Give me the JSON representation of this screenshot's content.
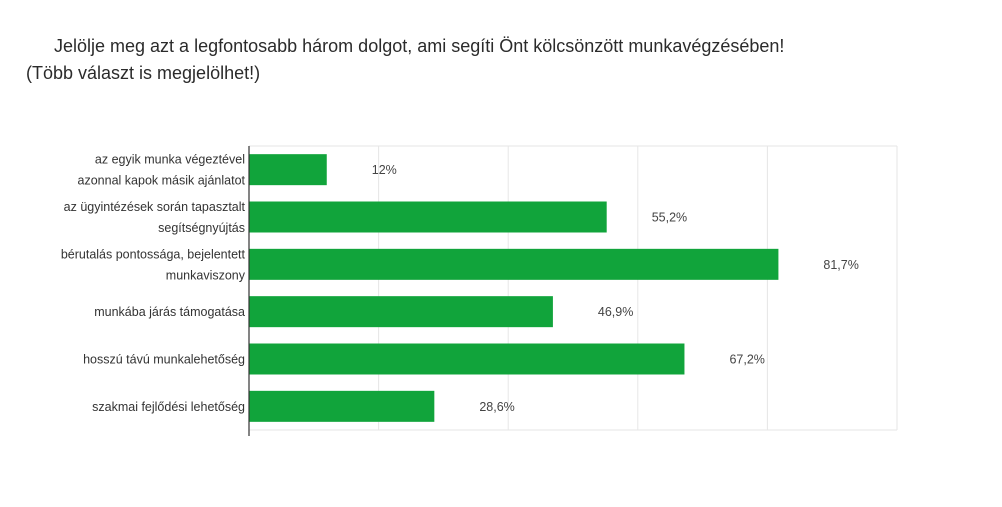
{
  "chart_data": {
    "type": "bar",
    "orientation": "horizontal",
    "title": "Jelölje meg azt a legfontosabb három dolgot, ami segíti Önt kölcsönzött munkavégzésében!",
    "subtitle": "(Több választ is megjelölhet!)",
    "categories": [
      [
        "az egyik munka végeztével",
        "azonnal kapok másik ajánlatot"
      ],
      [
        "az ügyintézések során tapasztalt",
        "segítségnyújtás"
      ],
      [
        "bérutalás pontossága, bejelentett",
        "munkaviszony"
      ],
      [
        "munkába járás támogatása"
      ],
      [
        "hosszú távú munkalehetőség"
      ],
      [
        "szakmai fejlődési lehetőség"
      ]
    ],
    "values": [
      12,
      55.2,
      81.7,
      46.9,
      67.2,
      28.6
    ],
    "value_labels": [
      "12%",
      "55,2%",
      "81,7%",
      "46,9%",
      "67,2%",
      "28,6%"
    ],
    "xlim": [
      0,
      100
    ],
    "grid": true,
    "bar_color": "#11a43b",
    "grid_color": "#e6e6e6"
  }
}
